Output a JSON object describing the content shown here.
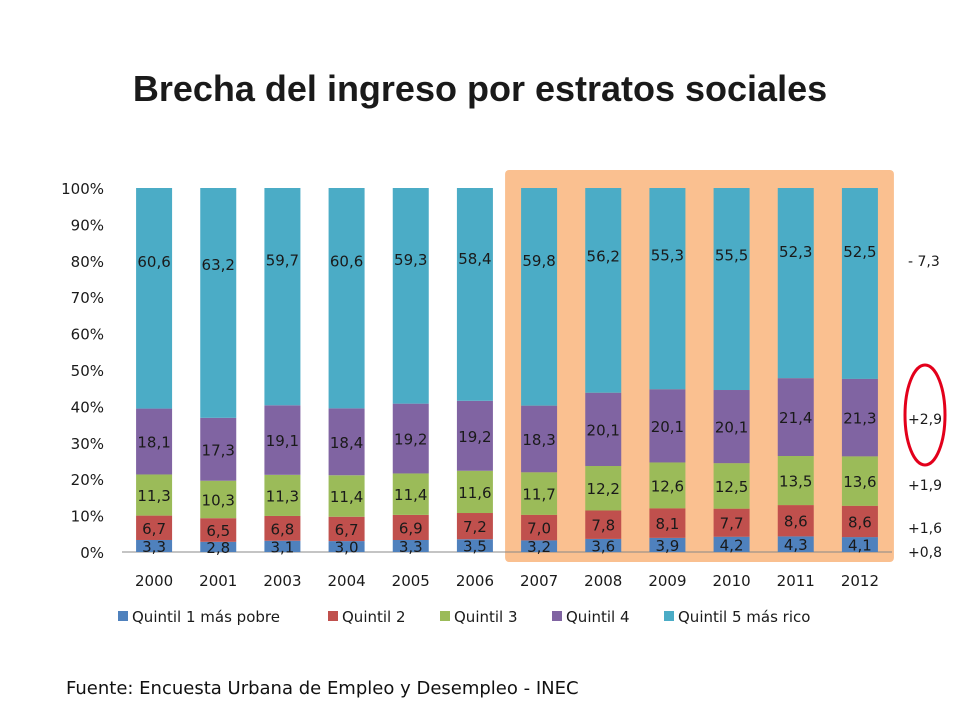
{
  "title": "Brecha del ingreso por estratos sociales",
  "source": "Fuente: Encuesta Urbana de Empleo y Desempleo - INEC",
  "chart_data": {
    "type": "bar",
    "stacked": true,
    "percent_stacked": true,
    "categories": [
      "2000",
      "2001",
      "2003",
      "2004",
      "2005",
      "2006",
      "2007",
      "2008",
      "2009",
      "2010",
      "2011",
      "2012"
    ],
    "series": [
      {
        "name": "Quintil 1 más pobre",
        "color": "#4F81BD",
        "values": [
          3.3,
          2.8,
          3.1,
          3.0,
          3.3,
          3.5,
          3.2,
          3.6,
          3.9,
          4.2,
          4.3,
          4.1
        ],
        "labels": [
          "3,3",
          "2,8",
          "3,1",
          "3,0",
          "3,3",
          "3,5",
          "3,2",
          "3,6",
          "3,9",
          "4,2",
          "4,3",
          "4,1"
        ]
      },
      {
        "name": "Quintil 2",
        "color": "#C0504D",
        "values": [
          6.7,
          6.5,
          6.8,
          6.7,
          6.9,
          7.2,
          7.0,
          7.8,
          8.1,
          7.7,
          8.6,
          8.6
        ],
        "labels": [
          "6,7",
          "6,5",
          "6,8",
          "6,7",
          "6,9",
          "7,2",
          "7,0",
          "7,8",
          "8,1",
          "7,7",
          "8,6",
          "8,6"
        ]
      },
      {
        "name": "Quintil 3",
        "color": "#9BBB59",
        "values": [
          11.3,
          10.3,
          11.3,
          11.4,
          11.4,
          11.6,
          11.7,
          12.2,
          12.6,
          12.5,
          13.5,
          13.6
        ],
        "labels": [
          "11,3",
          "10,3",
          "11,3",
          "11,4",
          "11,4",
          "11,6",
          "11,7",
          "12,2",
          "12,6",
          "12,5",
          "13,5",
          "13,6"
        ]
      },
      {
        "name": "Quintil 4",
        "color": "#8064A2",
        "values": [
          18.1,
          17.3,
          19.1,
          18.4,
          19.2,
          19.2,
          18.3,
          20.1,
          20.1,
          20.1,
          21.4,
          21.3
        ],
        "labels": [
          "18,1",
          "17,3",
          "19,1",
          "18,4",
          "19,2",
          "19,2",
          "18,3",
          "20,1",
          "20,1",
          "20,1",
          "21,4",
          "21,3"
        ]
      },
      {
        "name": "Quintil 5 más rico",
        "color": "#4BACC6",
        "values": [
          60.6,
          63.2,
          59.7,
          60.6,
          59.3,
          58.4,
          59.8,
          56.2,
          55.3,
          55.5,
          52.3,
          52.5
        ],
        "labels": [
          "60,6",
          "63,2",
          "59,7",
          "60,6",
          "59,3",
          "58,4",
          "59,8",
          "56,2",
          "55,3",
          "55,5",
          "52,3",
          "52,5"
        ]
      }
    ],
    "y_ticks": [
      "0%",
      "10%",
      "20%",
      "30%",
      "40%",
      "50%",
      "60%",
      "70%",
      "80%",
      "90%",
      "100%"
    ],
    "ylim": [
      0,
      100
    ],
    "grid": false,
    "legend_position": "bottom",
    "highlight": {
      "from_category": "2007",
      "to_category": "2012",
      "color": "#FAC090"
    },
    "annotations": [
      "- 7,3",
      "+2,9",
      "+1,9",
      "+1,6",
      "+0,8"
    ],
    "circle_color": "#E3001B"
  }
}
